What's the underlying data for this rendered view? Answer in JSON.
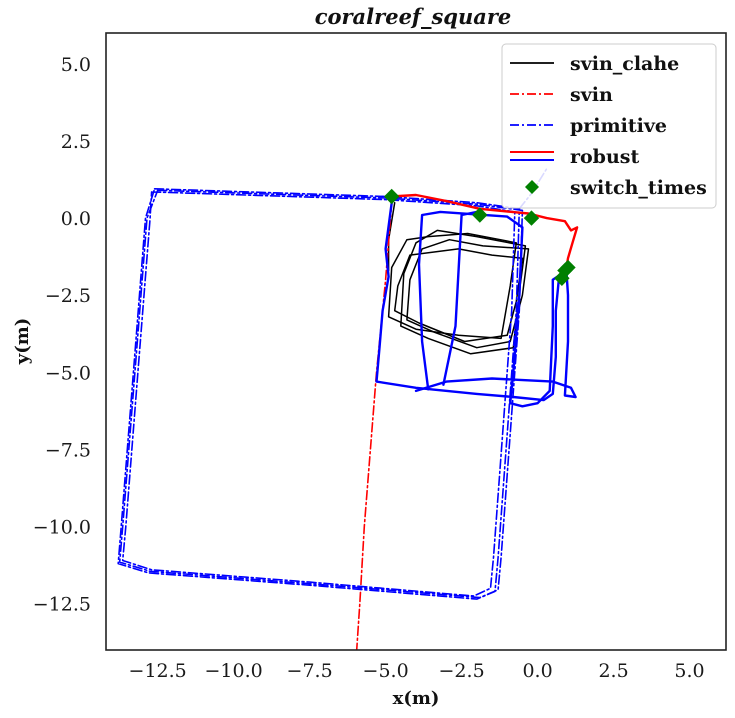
{
  "chart_data": {
    "type": "line",
    "title": "coralreef_square",
    "xlabel": "x(m)",
    "ylabel": "y(m)",
    "xlim": [
      -14.2,
      6.2
    ],
    "ylim": [
      -14.0,
      6.0
    ],
    "xticks": [
      -12.5,
      -10.0,
      -7.5,
      -5.0,
      -2.5,
      0.0,
      2.5,
      5.0
    ],
    "yticks": [
      -12.5,
      -10.0,
      -7.5,
      -5.0,
      -2.5,
      0.0,
      2.5,
      5.0
    ],
    "xtick_labels": [
      "−12.5",
      "−10.0",
      "−7.5",
      "−5.0",
      "−2.5",
      "0.0",
      "2.5",
      "5.0"
    ],
    "ytick_labels": [
      "−12.5",
      "−10.0",
      "−7.5",
      "−5.0",
      "−2.5",
      "0.0",
      "2.5",
      "5.0"
    ],
    "grid": false,
    "legend_position": "top-right",
    "legend": [
      {
        "label": "svin_clahe",
        "style": "solid",
        "color": "#000000"
      },
      {
        "label": "svin",
        "style": "dashdot",
        "color": "#ff0000"
      },
      {
        "label": "primitive",
        "style": "dashdot",
        "color": "#0000ff"
      },
      {
        "label": "robust",
        "style": "double",
        "color": "#ff0000",
        "color2": "#0000ff"
      },
      {
        "label": "switch_times",
        "style": "marker",
        "color": "#008000"
      }
    ],
    "series": [
      {
        "name": "svin_clahe",
        "color": "#000000",
        "style": "solid",
        "paths": [
          [
            [
              -2.9,
              -0.7
            ],
            [
              -1.8,
              -0.9
            ],
            [
              -0.3,
              -1.0
            ],
            [
              -0.5,
              -2.5
            ],
            [
              -0.9,
              -4.0
            ],
            [
              -2.0,
              -4.2
            ],
            [
              -3.4,
              -3.7
            ],
            [
              -4.3,
              -3.3
            ],
            [
              -4.2,
              -2.0
            ],
            [
              -3.8,
              -1.0
            ],
            [
              -2.9,
              -0.7
            ]
          ],
          [
            [
              -3.3,
              -0.4
            ],
            [
              -2.0,
              -0.6
            ],
            [
              -0.4,
              -0.9
            ],
            [
              -0.6,
              -2.4
            ],
            [
              -0.8,
              -4.2
            ],
            [
              -2.2,
              -4.4
            ],
            [
              -3.6,
              -3.9
            ],
            [
              -4.5,
              -3.5
            ],
            [
              -4.4,
              -1.8
            ],
            [
              -4.0,
              -0.8
            ],
            [
              -3.3,
              -0.4
            ]
          ],
          [
            [
              -2.6,
              -1.0
            ],
            [
              -1.5,
              -1.2
            ],
            [
              -0.5,
              -1.3
            ],
            [
              -0.7,
              -2.7
            ],
            [
              -1.0,
              -3.8
            ],
            [
              -2.4,
              -4.0
            ],
            [
              -3.9,
              -3.4
            ],
            [
              -4.7,
              -3.0
            ],
            [
              -4.6,
              -2.2
            ],
            [
              -4.2,
              -1.2
            ],
            [
              -2.6,
              -1.0
            ]
          ],
          [
            [
              -3.6,
              -0.6
            ],
            [
              -2.3,
              -0.5
            ],
            [
              -0.7,
              -0.8
            ],
            [
              -0.9,
              -2.2
            ],
            [
              -1.2,
              -3.9
            ],
            [
              -2.6,
              -3.8
            ],
            [
              -4.0,
              -3.6
            ],
            [
              -4.9,
              -3.2
            ],
            [
              -4.8,
              -1.6
            ],
            [
              -4.3,
              -0.7
            ],
            [
              -3.6,
              -0.6
            ]
          ],
          [
            [
              -4.7,
              0.5
            ],
            [
              -4.9,
              -0.7
            ],
            [
              -4.9,
              -1.7
            ]
          ]
        ]
      },
      {
        "name": "svin",
        "color": "#ff0000",
        "style": "dashdot",
        "paths": [
          [
            [
              -4.8,
              0.5
            ],
            [
              -5.0,
              -2.0
            ],
            [
              -5.3,
              -5.0
            ],
            [
              -5.5,
              -7.5
            ],
            [
              -5.7,
              -10.0
            ],
            [
              -5.85,
              -12.5
            ],
            [
              -5.95,
              -14.0
            ]
          ]
        ]
      },
      {
        "name": "primitive",
        "color": "#0000ff",
        "style": "dashdot",
        "paths": [
          [
            [
              -12.6,
              0.95
            ],
            [
              -5.0,
              0.7
            ],
            [
              -2.0,
              0.5
            ],
            [
              -0.6,
              0.3
            ],
            [
              -0.7,
              -3.0
            ],
            [
              -1.0,
              -7.0
            ],
            [
              -1.3,
              -11.0
            ],
            [
              -1.4,
              -12.1
            ],
            [
              -2.0,
              -12.35
            ],
            [
              -7.5,
              -11.9
            ],
            [
              -12.8,
              -11.5
            ],
            [
              -13.8,
              -11.2
            ],
            [
              -13.7,
              -10.0
            ],
            [
              -13.3,
              -5.0
            ],
            [
              -12.9,
              0.0
            ],
            [
              -12.6,
              0.95
            ]
          ],
          [
            [
              -12.7,
              0.85
            ],
            [
              -5.0,
              0.6
            ],
            [
              -2.0,
              0.4
            ],
            [
              -0.75,
              0.2
            ],
            [
              -0.85,
              -3.0
            ],
            [
              -1.15,
              -7.0
            ],
            [
              -1.45,
              -11.0
            ],
            [
              -1.55,
              -12.0
            ],
            [
              -2.1,
              -12.25
            ],
            [
              -7.5,
              -11.8
            ],
            [
              -12.7,
              -11.4
            ],
            [
              -13.65,
              -11.1
            ],
            [
              -13.55,
              -10.0
            ],
            [
              -13.15,
              -5.0
            ],
            [
              -12.75,
              0.0
            ],
            [
              -12.7,
              0.85
            ]
          ],
          [
            [
              -12.5,
              0.9
            ],
            [
              -5.0,
              0.65
            ],
            [
              -2.0,
              0.45
            ],
            [
              -0.5,
              0.25
            ],
            [
              -0.6,
              -3.0
            ],
            [
              -0.9,
              -7.0
            ],
            [
              -1.2,
              -11.0
            ],
            [
              -1.3,
              -12.05
            ],
            [
              -1.9,
              -12.3
            ],
            [
              -7.5,
              -11.85
            ],
            [
              -12.75,
              -11.45
            ],
            [
              -13.75,
              -11.15
            ],
            [
              -13.65,
              -10.0
            ],
            [
              -13.25,
              -5.0
            ],
            [
              -12.85,
              0.0
            ],
            [
              -12.5,
              0.9
            ]
          ],
          [
            [
              -0.6,
              0.3
            ],
            [
              -0.2,
              0.8
            ],
            [
              0.3,
              1.6
            ]
          ]
        ]
      },
      {
        "name": "robust",
        "color": "#ff0000",
        "style": "solid",
        "paths": [
          [
            [
              -4.8,
              0.7
            ],
            [
              -4.0,
              0.75
            ],
            [
              -3.0,
              0.55
            ],
            [
              -1.9,
              0.3
            ],
            [
              -0.3,
              0.15
            ],
            [
              0.3,
              0.0
            ],
            [
              0.9,
              -0.1
            ],
            [
              1.1,
              -0.4
            ],
            [
              1.3,
              -0.3
            ],
            [
              1.15,
              -0.8
            ],
            [
              1.0,
              -1.3
            ],
            [
              0.95,
              -1.6
            ]
          ]
        ]
      },
      {
        "name": "robust",
        "color": "#0000ff",
        "style": "solid",
        "paths": [
          [
            [
              -4.8,
              0.5
            ],
            [
              -5.0,
              -1.0
            ],
            [
              -4.9,
              -1.9
            ],
            [
              -5.1,
              -3.0
            ],
            [
              -5.2,
              -4.2
            ],
            [
              -5.3,
              -5.3
            ],
            [
              -4.0,
              -5.5
            ],
            [
              -2.0,
              -5.7
            ],
            [
              -0.8,
              -5.8
            ],
            [
              0.2,
              -5.9
            ],
            [
              0.5,
              -5.7
            ],
            [
              0.6,
              -4.5
            ],
            [
              0.6,
              -3.0
            ],
            [
              0.7,
              -2.0
            ]
          ],
          [
            [
              -3.6,
              -5.55
            ],
            [
              -3.8,
              -4.0
            ],
            [
              -3.9,
              -1.5
            ],
            [
              -3.8,
              0.1
            ],
            [
              -3.2,
              0.2
            ],
            [
              -1.0,
              0.05
            ],
            [
              -0.5,
              -0.3
            ],
            [
              -0.6,
              -2.5
            ],
            [
              -0.8,
              -5.0
            ],
            [
              -0.9,
              -6.0
            ],
            [
              -0.5,
              -6.1
            ],
            [
              0.0,
              -6.0
            ],
            [
              0.4,
              -5.6
            ],
            [
              0.5,
              -3.5
            ],
            [
              0.5,
              -2.0
            ],
            [
              0.8,
              -1.8
            ],
            [
              1.0,
              -1.6
            ]
          ],
          [
            [
              -4.0,
              -5.6
            ],
            [
              -3.0,
              -5.3
            ],
            [
              -1.5,
              -5.2
            ],
            [
              0.5,
              -5.3
            ],
            [
              1.1,
              -5.5
            ],
            [
              1.25,
              -5.8
            ],
            [
              0.9,
              -5.75
            ],
            [
              1.0,
              -4.0
            ],
            [
              1.0,
              -2.5
            ],
            [
              0.95,
              -1.7
            ]
          ],
          [
            [
              -3.1,
              -5.4
            ],
            [
              -2.7,
              -3.5
            ],
            [
              -2.5,
              0.1
            ],
            [
              -2.0,
              0.2
            ]
          ]
        ]
      },
      {
        "name": "switch_times",
        "color": "#008000",
        "style": "marker",
        "points": [
          [
            -4.8,
            0.7
          ],
          [
            -1.9,
            0.1
          ],
          [
            -0.2,
            0.0
          ],
          [
            1.0,
            -1.6
          ],
          [
            0.9,
            -1.7
          ],
          [
            0.8,
            -1.95
          ]
        ]
      }
    ]
  }
}
